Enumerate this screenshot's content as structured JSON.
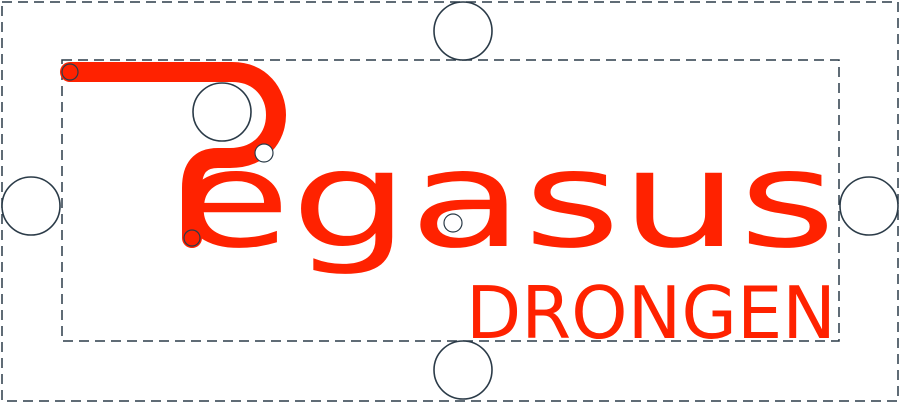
{
  "logo": {
    "word_main": "egasus",
    "word_sub": "DRONGEN",
    "brand_color": "#ff2200"
  },
  "guides": {
    "line_color": "#2b3b48",
    "handle_fill": "#ffffff",
    "handle_stroke": "#2b3b48",
    "node_fill": "#ff2200"
  }
}
